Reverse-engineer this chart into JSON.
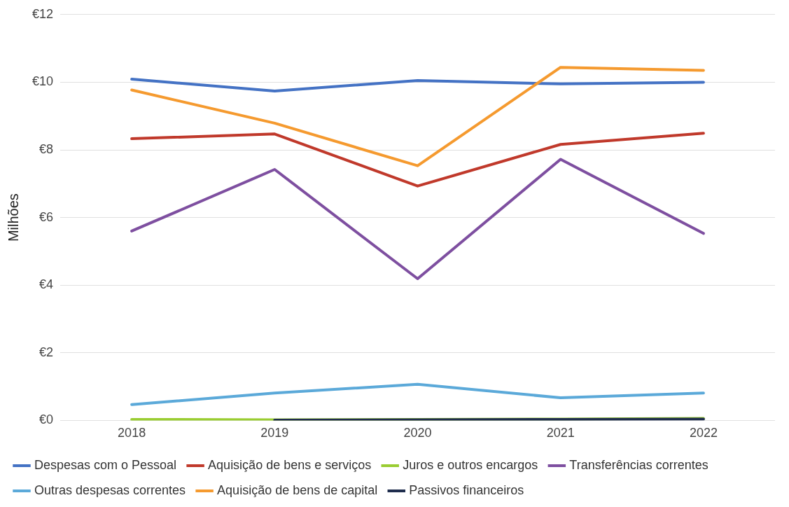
{
  "chart_data": {
    "type": "line",
    "ylabel": "Milhões",
    "categories": [
      "2018",
      "2019",
      "2020",
      "2021",
      "2022"
    ],
    "ylim": [
      0,
      12
    ],
    "yticks": [
      {
        "value": 0,
        "label": "€0"
      },
      {
        "value": 2,
        "label": "€2"
      },
      {
        "value": 4,
        "label": "€4"
      },
      {
        "value": 6,
        "label": "€6"
      },
      {
        "value": 8,
        "label": "€8"
      },
      {
        "value": 10,
        "label": "€10"
      },
      {
        "value": 12,
        "label": "€12"
      }
    ],
    "grid": "y",
    "legend": "bottom",
    "marker": "none",
    "line_style": "solid",
    "series": [
      {
        "name": "Despesas com o Pessoal",
        "color": "#4472c4",
        "values": [
          10.09,
          9.74,
          10.05,
          9.95,
          10.0
        ]
      },
      {
        "name": "Aquisição de bens e serviços",
        "color": "#c0392b",
        "values": [
          8.33,
          8.47,
          6.93,
          8.16,
          8.49
        ]
      },
      {
        "name": "Juros e outros encargos",
        "color": "#9acd32",
        "values": [
          0.03,
          0.02,
          0.03,
          0.04,
          0.06
        ]
      },
      {
        "name": "Transferências correntes",
        "color": "#7e4fa0",
        "values": [
          5.6,
          7.42,
          4.19,
          7.72,
          5.53
        ]
      },
      {
        "name": "Outras despesas correntes",
        "color": "#5ba9d9",
        "values": [
          0.47,
          0.81,
          1.07,
          0.67,
          0.81
        ]
      },
      {
        "name": "Aquisição de bens de capital",
        "color": "#f59a2f",
        "values": [
          9.77,
          8.79,
          7.53,
          10.44,
          10.35
        ]
      },
      {
        "name": "Passivos financeiros",
        "color": "#1f2d4d",
        "values": [
          null,
          0.01,
          0.02,
          0.03,
          0.04
        ]
      }
    ]
  }
}
